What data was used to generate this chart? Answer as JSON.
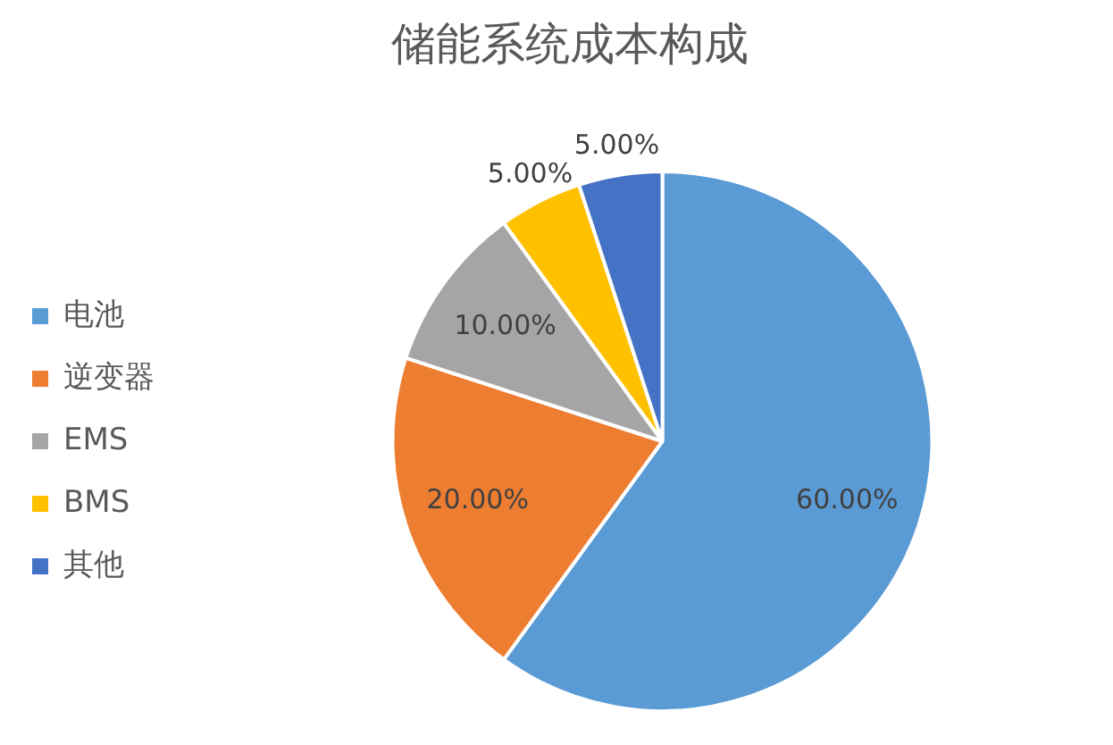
{
  "chart_data": {
    "type": "pie",
    "title": "储能系统成本构成",
    "categories": [
      "电池",
      "逆变器",
      "EMS",
      "BMS",
      "其他"
    ],
    "values": [
      60,
      20,
      10,
      5,
      5
    ],
    "colors": [
      "#5b9bd5",
      "#ed7d31",
      "#a5a5a5",
      "#ffc000",
      "#4472c4"
    ],
    "value_labels": [
      "60.00%",
      "20.00%",
      "10.00%",
      "5.00%",
      "5.00%"
    ],
    "legend": "left"
  }
}
